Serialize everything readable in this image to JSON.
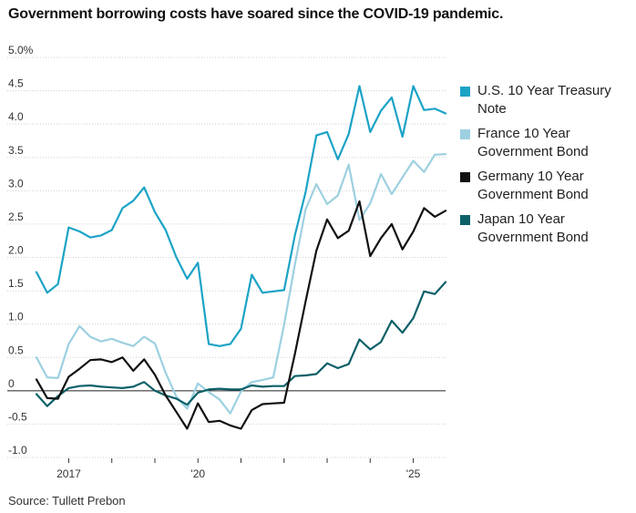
{
  "title": "Government borrowing costs have soared since the COVID-19 pandemic.",
  "source": "Source: Tullett Prebon",
  "chart_data": {
    "type": "line",
    "title": "Government borrowing costs have soared since the COVID-19 pandemic.",
    "xlabel": "",
    "ylabel": "",
    "ylim": [
      -1.0,
      5.0
    ],
    "xlim": [
      2016.25,
      2025.75
    ],
    "grid": true,
    "legend_position": "right",
    "y_ticks": [
      {
        "value": 5.0,
        "label": "5.0%"
      },
      {
        "value": 4.5,
        "label": "4.5"
      },
      {
        "value": 4.0,
        "label": "4.0"
      },
      {
        "value": 3.5,
        "label": "3.5"
      },
      {
        "value": 3.0,
        "label": "3.0"
      },
      {
        "value": 2.5,
        "label": "2.5"
      },
      {
        "value": 2.0,
        "label": "2.0"
      },
      {
        "value": 1.5,
        "label": "1.5"
      },
      {
        "value": 1.0,
        "label": "1.0"
      },
      {
        "value": 0.5,
        "label": "0.5"
      },
      {
        "value": 0.0,
        "label": "0"
      },
      {
        "value": -0.5,
        "label": "-0.5"
      },
      {
        "value": -1.0,
        "label": "-1.0"
      }
    ],
    "x_tick_marks": [
      2017,
      2018,
      2019,
      2020,
      2021,
      2022,
      2023,
      2024,
      2025
    ],
    "x_tick_labels": [
      {
        "value": 2017,
        "label": "2017"
      },
      {
        "value": 2020,
        "label": "'20"
      },
      {
        "value": 2025,
        "label": "'25"
      }
    ],
    "x": [
      2016.25,
      2016.5,
      2016.75,
      2017.0,
      2017.25,
      2017.5,
      2017.75,
      2018.0,
      2018.25,
      2018.5,
      2018.75,
      2019.0,
      2019.25,
      2019.5,
      2019.75,
      2020.0,
      2020.25,
      2020.5,
      2020.75,
      2021.0,
      2021.25,
      2021.5,
      2021.75,
      2022.0,
      2022.25,
      2022.5,
      2022.75,
      2023.0,
      2023.25,
      2023.5,
      2023.75,
      2024.0,
      2024.25,
      2024.5,
      2024.75,
      2025.0,
      2025.25,
      2025.5,
      2025.75
    ],
    "series": [
      {
        "name": "U.S. 10 Year Treasury Note",
        "color": "#1ba3c6",
        "values": [
          1.78,
          1.47,
          1.6,
          2.45,
          2.39,
          2.3,
          2.33,
          2.41,
          2.74,
          2.85,
          3.05,
          2.68,
          2.41,
          2.0,
          1.68,
          1.92,
          0.7,
          0.67,
          0.7,
          0.93,
          1.74,
          1.47,
          1.49,
          1.51,
          2.33,
          2.98,
          3.83,
          3.88,
          3.47,
          3.85,
          4.57,
          3.88,
          4.2,
          4.4,
          3.81,
          4.57,
          4.21,
          4.23,
          4.16
        ]
      },
      {
        "name": "France 10 Year Government Bond",
        "color": "#9dd0e0",
        "values": [
          0.5,
          0.2,
          0.19,
          0.7,
          0.97,
          0.81,
          0.74,
          0.78,
          0.72,
          0.67,
          0.81,
          0.71,
          0.27,
          -0.09,
          -0.27,
          0.11,
          -0.02,
          -0.13,
          -0.34,
          -0.01,
          0.13,
          0.16,
          0.2,
          0.99,
          1.89,
          2.72,
          3.1,
          2.8,
          2.93,
          3.39,
          2.56,
          2.81,
          3.25,
          2.95,
          3.2,
          3.45,
          3.28,
          3.54,
          3.55
        ]
      },
      {
        "name": "Germany 10 Year Government Bond",
        "color": "#111111",
        "values": [
          0.17,
          -0.11,
          -0.12,
          0.21,
          0.33,
          0.46,
          0.47,
          0.43,
          0.5,
          0.3,
          0.47,
          0.24,
          -0.07,
          -0.32,
          -0.57,
          -0.19,
          -0.47,
          -0.45,
          -0.52,
          -0.57,
          -0.29,
          -0.2,
          -0.19,
          -0.18,
          0.55,
          1.34,
          2.1,
          2.57,
          2.29,
          2.4,
          2.84,
          2.02,
          2.29,
          2.5,
          2.12,
          2.39,
          2.74,
          2.61,
          2.7
        ]
      },
      {
        "name": "Japan 10 Year Government Bond",
        "color": "#0b6068",
        "values": [
          -0.05,
          -0.23,
          -0.08,
          0.04,
          0.07,
          0.08,
          0.06,
          0.05,
          0.04,
          0.06,
          0.13,
          -0.0,
          -0.07,
          -0.12,
          -0.21,
          -0.03,
          0.02,
          0.03,
          0.02,
          0.02,
          0.08,
          0.06,
          0.07,
          0.07,
          0.22,
          0.23,
          0.25,
          0.41,
          0.34,
          0.4,
          0.77,
          0.62,
          0.73,
          1.05,
          0.87,
          1.09,
          1.49,
          1.45,
          1.63
        ]
      }
    ]
  }
}
